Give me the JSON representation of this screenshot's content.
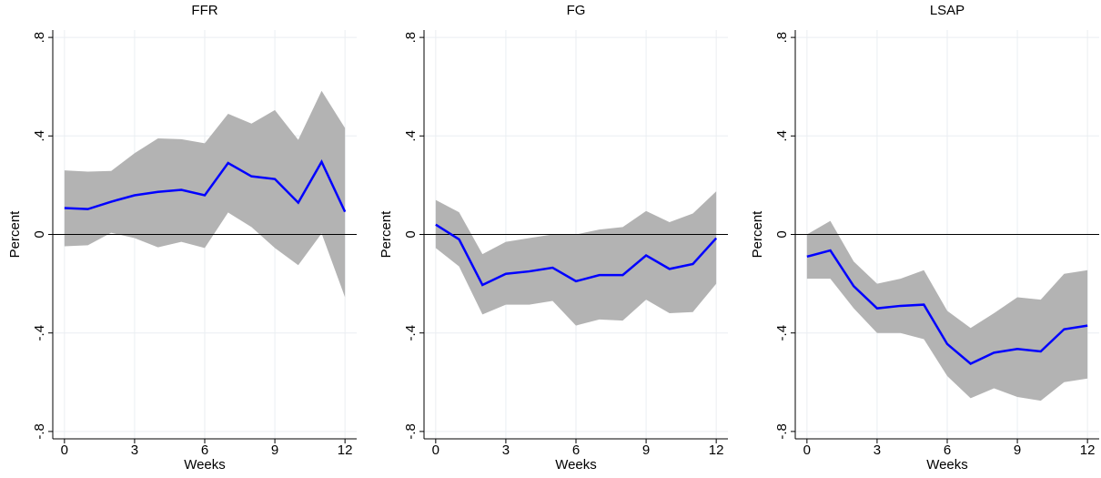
{
  "chart_data": [
    {
      "type": "line",
      "title": "FFR",
      "x_label": "Weeks",
      "y_label": "Percent",
      "x": [
        0,
        1,
        2,
        3,
        4,
        5,
        6,
        7,
        8,
        9,
        10,
        11,
        12
      ],
      "series": [
        {
          "color": "#0000ff",
          "values": [
            0.107,
            0.103,
            0.133,
            0.159,
            0.173,
            0.181,
            0.159,
            0.29,
            0.236,
            0.225,
            0.129,
            0.295,
            0.092
          ]
        }
      ],
      "band": {
        "color": "#b3b3b3",
        "upper": [
          0.26,
          0.255,
          0.258,
          0.33,
          0.39,
          0.387,
          0.37,
          0.49,
          0.45,
          0.505,
          0.384,
          0.583,
          0.432
        ],
        "lower": [
          -0.048,
          -0.044,
          0.007,
          -0.015,
          -0.052,
          -0.03,
          -0.055,
          0.089,
          0.03,
          -0.055,
          -0.125,
          0.004,
          -0.255
        ]
      },
      "hline": 0,
      "xlim": [
        -0.5,
        12.5
      ],
      "ylim": [
        -0.83,
        0.83
      ],
      "xticks": [
        0,
        3,
        6,
        9,
        12
      ],
      "yticks": [
        {
          "value": -0.8,
          "label": "-.8"
        },
        {
          "value": -0.4,
          "label": "-.4"
        },
        0,
        {
          "value": 0.4,
          "label": ".4"
        },
        {
          "value": 0.8,
          "label": ".8"
        }
      ],
      "grid": true
    },
    {
      "type": "line",
      "title": "FG",
      "x_label": "Weeks",
      "y_label": "Percent",
      "x": [
        0,
        1,
        2,
        3,
        4,
        5,
        6,
        7,
        8,
        9,
        10,
        11,
        12
      ],
      "series": [
        {
          "color": "#0000ff",
          "values": [
            0.04,
            -0.02,
            -0.205,
            -0.16,
            -0.15,
            -0.135,
            -0.19,
            -0.165,
            -0.165,
            -0.085,
            -0.14,
            -0.12,
            -0.015
          ]
        }
      ],
      "band": {
        "color": "#b3b3b3",
        "upper": [
          0.14,
          0.09,
          -0.08,
          -0.03,
          -0.015,
          0.0,
          0.0,
          0.02,
          0.03,
          0.095,
          0.05,
          0.085,
          0.175
        ],
        "lower": [
          -0.055,
          -0.13,
          -0.325,
          -0.285,
          -0.285,
          -0.27,
          -0.37,
          -0.345,
          -0.35,
          -0.265,
          -0.32,
          -0.315,
          -0.2
        ]
      },
      "hline": 0,
      "xlim": [
        -0.5,
        12.5
      ],
      "ylim": [
        -0.83,
        0.83
      ],
      "xticks": [
        0,
        3,
        6,
        9,
        12
      ],
      "yticks": [
        {
          "value": -0.8,
          "label": "-.8"
        },
        {
          "value": -0.4,
          "label": "-.4"
        },
        0,
        {
          "value": 0.4,
          "label": ".4"
        },
        {
          "value": 0.8,
          "label": ".8"
        }
      ],
      "grid": true
    },
    {
      "type": "line",
      "title": "LSAP",
      "x_label": "Weeks",
      "y_label": "Percent",
      "x": [
        0,
        1,
        2,
        3,
        4,
        5,
        6,
        7,
        8,
        9,
        10,
        11,
        12
      ],
      "series": [
        {
          "color": "#0000ff",
          "values": [
            -0.09,
            -0.065,
            -0.21,
            -0.3,
            -0.29,
            -0.285,
            -0.445,
            -0.525,
            -0.48,
            -0.465,
            -0.475,
            -0.385,
            -0.37
          ]
        }
      ],
      "band": {
        "color": "#b3b3b3",
        "upper": [
          0.0,
          0.055,
          -0.11,
          -0.2,
          -0.18,
          -0.145,
          -0.31,
          -0.38,
          -0.32,
          -0.255,
          -0.265,
          -0.16,
          -0.145
        ],
        "lower": [
          -0.18,
          -0.18,
          -0.3,
          -0.4,
          -0.4,
          -0.425,
          -0.575,
          -0.665,
          -0.625,
          -0.66,
          -0.675,
          -0.6,
          -0.585
        ]
      },
      "hline": 0,
      "xlim": [
        -0.5,
        12.5
      ],
      "ylim": [
        -0.83,
        0.83
      ],
      "xticks": [
        0,
        3,
        6,
        9,
        12
      ],
      "yticks": [
        {
          "value": -0.8,
          "label": "-.8"
        },
        {
          "value": -0.4,
          "label": "-.4"
        },
        0,
        {
          "value": 0.4,
          "label": ".4"
        },
        {
          "value": 0.8,
          "label": ".8"
        }
      ],
      "grid": true
    }
  ]
}
